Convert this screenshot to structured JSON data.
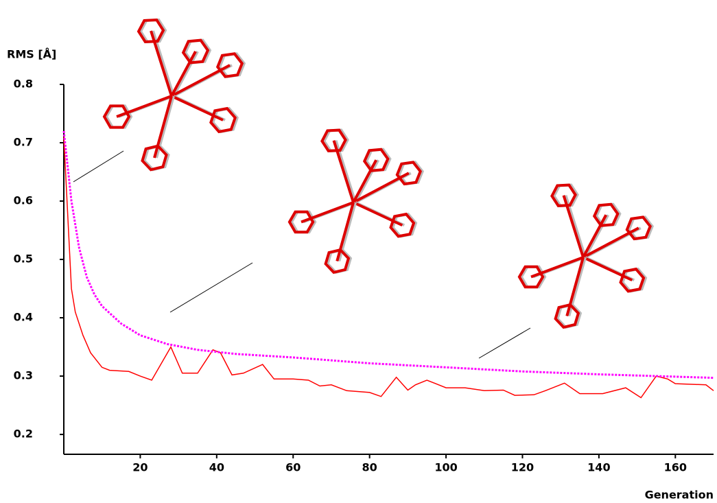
{
  "chart_data": {
    "type": "line",
    "y_label": "RMS [Å]",
    "x_label": "Generation",
    "xlim": [
      0,
      170
    ],
    "ylim": [
      0.166,
      0.8
    ],
    "xticks": [
      20,
      40,
      60,
      80,
      100,
      120,
      140,
      160
    ],
    "yticks": [
      0.2,
      0.3,
      0.4,
      0.5,
      0.6,
      0.7,
      0.8
    ],
    "grid": false,
    "series": [
      {
        "color": "#ff0000",
        "line_style": "solid",
        "x": [
          0,
          2,
          3,
          5,
          7,
          10,
          12,
          17,
          20,
          23,
          28,
          31,
          35,
          39,
          41,
          44,
          47,
          52,
          55,
          60,
          64,
          67,
          70,
          74,
          80,
          83,
          87,
          90,
          92,
          95,
          100,
          105,
          110,
          115,
          118,
          123,
          126,
          131,
          135,
          141,
          147,
          151,
          155,
          158,
          160,
          168,
          170
        ],
        "values": [
          0.71,
          0.45,
          0.41,
          0.37,
          0.34,
          0.315,
          0.31,
          0.308,
          0.3,
          0.293,
          0.35,
          0.305,
          0.305,
          0.345,
          0.34,
          0.302,
          0.305,
          0.32,
          0.295,
          0.295,
          0.293,
          0.283,
          0.285,
          0.275,
          0.272,
          0.265,
          0.298,
          0.276,
          0.285,
          0.293,
          0.28,
          0.28,
          0.275,
          0.276,
          0.267,
          0.268,
          0.275,
          0.288,
          0.27,
          0.27,
          0.28,
          0.263,
          0.3,
          0.295,
          0.287,
          0.285,
          0.275
        ]
      },
      {
        "color": "#ff00ff",
        "line_style": "dotted",
        "x": [
          0,
          2,
          4,
          6,
          8,
          10,
          15,
          20,
          27,
          35,
          45,
          60,
          80,
          100,
          120,
          140,
          160,
          170
        ],
        "values": [
          0.72,
          0.6,
          0.52,
          0.47,
          0.44,
          0.42,
          0.39,
          0.37,
          0.355,
          0.345,
          0.338,
          0.332,
          0.322,
          0.315,
          0.308,
          0.303,
          0.299,
          0.297
        ]
      }
    ]
  }
}
